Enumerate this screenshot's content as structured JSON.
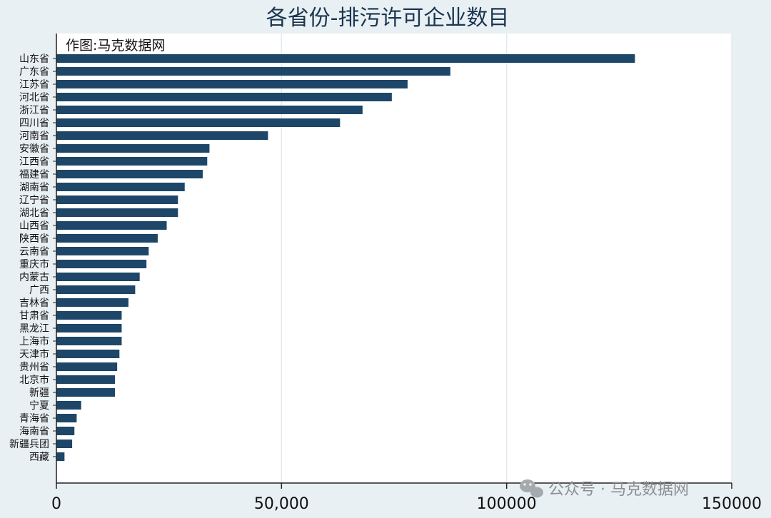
{
  "chart_data": {
    "type": "bar",
    "orientation": "horizontal",
    "title": "各省份-排污许可企业数目",
    "annotation": "作图:马克数据网",
    "categories": [
      "山东省",
      "广东省",
      "江苏省",
      "河北省",
      "浙江省",
      "四川省",
      "河南省",
      "安徽省",
      "江西省",
      "福建省",
      "湖南省",
      "辽宁省",
      "湖北省",
      "山西省",
      "陕西省",
      "云南省",
      "重庆市",
      "内蒙古",
      "广西",
      "吉林省",
      "甘肃省",
      "黑龙江",
      "上海市",
      "天津市",
      "贵州省",
      "北京市",
      "新疆",
      "宁夏",
      "青海省",
      "海南省",
      "新疆兵团",
      "西藏"
    ],
    "values": [
      128500,
      87500,
      78000,
      74500,
      68000,
      63000,
      47000,
      34000,
      33500,
      32500,
      28500,
      27000,
      27000,
      24500,
      22500,
      20500,
      20000,
      18500,
      17500,
      16000,
      14500,
      14500,
      14500,
      14000,
      13500,
      13000,
      13000,
      5500,
      4500,
      4000,
      3500,
      1800
    ],
    "xlim": [
      0,
      150000
    ],
    "xticks": [
      0,
      50000,
      100000,
      150000
    ],
    "xtick_labels": [
      "0",
      "50,000",
      "100000",
      "150000"
    ],
    "grid": "vertical",
    "bar_color": "#1d4668"
  },
  "watermark": {
    "icon": "wechat-icon",
    "text": "公众号 · 马克数据网"
  }
}
